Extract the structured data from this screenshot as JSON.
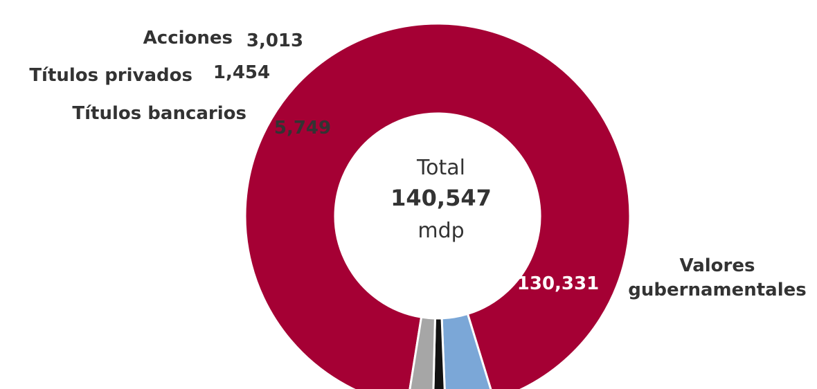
{
  "chart_data": {
    "type": "pie",
    "donut": true,
    "categories": [
      "Valores gubernamentales",
      "Títulos bancarios",
      "Títulos privados",
      "Acciones"
    ],
    "values": [
      130331,
      5749,
      1454,
      3013
    ],
    "colors": [
      "#A50034",
      "#7BA7D7",
      "#111111",
      "#A6A6A6"
    ],
    "center_label": {
      "top": "Total",
      "value": "140,547",
      "bottom": "mdp"
    },
    "category_labels": {
      "gov": [
        "Valores",
        "gubernamentales"
      ],
      "banc": "Títulos bancarios",
      "priv": "Títulos privados",
      "acc": "Acciones"
    },
    "value_labels": [
      "130,331",
      "5,749",
      "1,454",
      "3,013"
    ]
  }
}
